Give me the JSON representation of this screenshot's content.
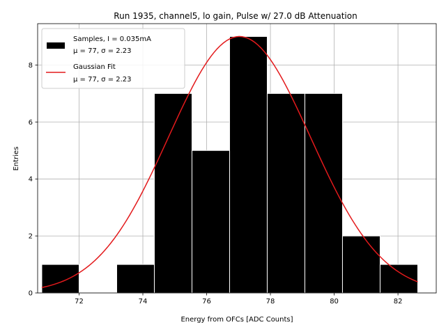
{
  "chart_data": {
    "type": "bar",
    "title": "Run 1935, channel5, lo gain, Pulse w/ 27.0 dB Attenuation",
    "xlabel": "Energy from OFCs [ADC Counts]",
    "ylabel": "Entries",
    "xlim": [
      70.7,
      83.2
    ],
    "ylim": [
      0,
      9.45
    ],
    "xticks": [
      72,
      74,
      76,
      78,
      80,
      82
    ],
    "yticks": [
      0,
      2,
      4,
      6,
      8
    ],
    "grid": true,
    "legend_position": "top-left",
    "histogram": {
      "name": "Samples, I = 0.035mA",
      "stats": "μ = 77, σ = 2.23",
      "color": "#000000",
      "bins": [
        {
          "x0": 70.83,
          "x1": 72.0,
          "count": 1
        },
        {
          "x0": 72.0,
          "x1": 73.18,
          "count": 0
        },
        {
          "x0": 73.18,
          "x1": 74.36,
          "count": 1
        },
        {
          "x0": 74.36,
          "x1": 75.54,
          "count": 7
        },
        {
          "x0": 75.54,
          "x1": 76.72,
          "count": 5
        },
        {
          "x0": 76.72,
          "x1": 77.9,
          "count": 9
        },
        {
          "x0": 77.9,
          "x1": 79.08,
          "count": 7
        },
        {
          "x0": 79.08,
          "x1": 80.26,
          "count": 7
        },
        {
          "x0": 80.26,
          "x1": 81.44,
          "count": 2
        },
        {
          "x0": 81.44,
          "x1": 82.62,
          "count": 1
        }
      ]
    },
    "fit": {
      "name": "Gaussian Fit",
      "stats": "μ = 77, σ = 2.23",
      "color": "#e31a1c",
      "mu": 77.03,
      "sigma": 2.23,
      "amplitude": 9.0,
      "x_range": [
        70.83,
        82.62
      ]
    }
  }
}
